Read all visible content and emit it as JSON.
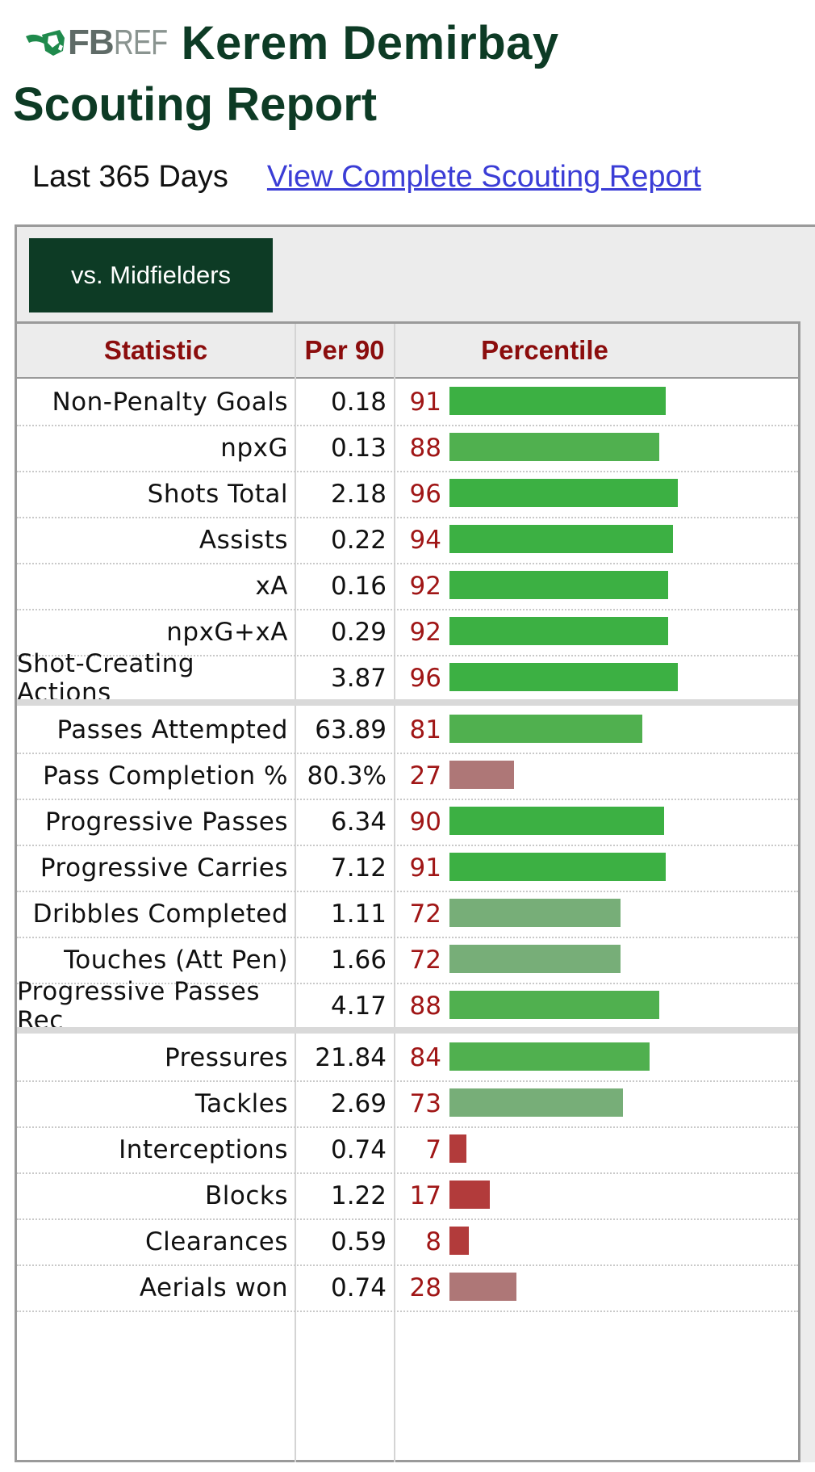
{
  "logo": {
    "fb": "FB",
    "ref": "REF",
    "icon": "fbref-logo-icon"
  },
  "header": {
    "player_name": "Kerem Demirbay",
    "subtitle": "Scouting Report",
    "period": "Last 365 Days",
    "link_label": "View Complete Scouting Report"
  },
  "filter": {
    "label": "vs. Midfielders"
  },
  "table": {
    "headers": {
      "statistic": "Statistic",
      "per90": "Per 90",
      "percentile": "Percentile"
    },
    "groups": [
      [
        {
          "stat": "Non-Penalty Goals",
          "per90": "0.18",
          "percentile": 91
        },
        {
          "stat": "npxG",
          "per90": "0.13",
          "percentile": 88
        },
        {
          "stat": "Shots Total",
          "per90": "2.18",
          "percentile": 96
        },
        {
          "stat": "Assists",
          "per90": "0.22",
          "percentile": 94
        },
        {
          "stat": "xA",
          "per90": "0.16",
          "percentile": 92
        },
        {
          "stat": "npxG+xA",
          "per90": "0.29",
          "percentile": 92
        },
        {
          "stat": "Shot-Creating Actions",
          "per90": "3.87",
          "percentile": 96
        }
      ],
      [
        {
          "stat": "Passes Attempted",
          "per90": "63.89",
          "percentile": 81
        },
        {
          "stat": "Pass Completion %",
          "per90": "80.3%",
          "percentile": 27
        },
        {
          "stat": "Progressive Passes",
          "per90": "6.34",
          "percentile": 90
        },
        {
          "stat": "Progressive Carries",
          "per90": "7.12",
          "percentile": 91
        },
        {
          "stat": "Dribbles Completed",
          "per90": "1.11",
          "percentile": 72
        },
        {
          "stat": "Touches (Att Pen)",
          "per90": "1.66",
          "percentile": 72
        },
        {
          "stat": "Progressive Passes Rec",
          "per90": "4.17",
          "percentile": 88
        }
      ],
      [
        {
          "stat": "Pressures",
          "per90": "21.84",
          "percentile": 84
        },
        {
          "stat": "Tackles",
          "per90": "2.69",
          "percentile": 73
        },
        {
          "stat": "Interceptions",
          "per90": "0.74",
          "percentile": 7
        },
        {
          "stat": "Blocks",
          "per90": "1.22",
          "percentile": 17
        },
        {
          "stat": "Clearances",
          "per90": "0.59",
          "percentile": 8
        },
        {
          "stat": "Aerials won",
          "per90": "0.74",
          "percentile": 28
        }
      ]
    ]
  },
  "colors": {
    "brand_dark_green": "#0d3b25",
    "percentile_text": "#a01616",
    "bar_high": "#3cb043",
    "bar_mid_high": "#50b04f",
    "bar_mid": "#77ae78",
    "bar_low_mid": "#ae7777",
    "bar_low": "#b23b3b",
    "link": "#3b3dd6"
  }
}
